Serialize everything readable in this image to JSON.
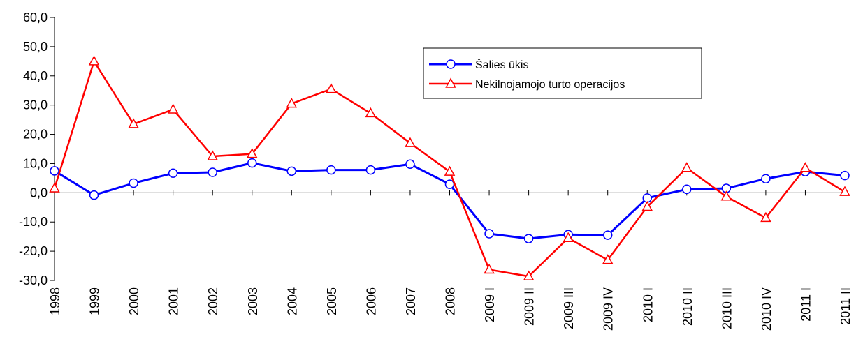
{
  "chart_data": {
    "type": "line",
    "categories": [
      "1998",
      "1999",
      "2000",
      "2001",
      "2002",
      "2003",
      "2004",
      "2005",
      "2006",
      "2007",
      "2008",
      "2009 I",
      "2009 II",
      "2009 III",
      "2009 IV",
      "2010 I",
      "2010 II",
      "2010 III",
      "2010 IV",
      "2011 I",
      "2011 II"
    ],
    "series": [
      {
        "name": "Šalies ūkis",
        "color": "#0000ff",
        "marker": "circle",
        "values": [
          7.5,
          -0.8,
          3.3,
          6.7,
          7.0,
          10.2,
          7.4,
          7.8,
          7.8,
          9.8,
          2.9,
          -14.0,
          -15.7,
          -14.3,
          -14.5,
          -1.8,
          1.2,
          1.5,
          4.8,
          7.2,
          5.9
        ]
      },
      {
        "name": "Nekilnojamojo turto operacijos",
        "color": "#ff0000",
        "marker": "triangle",
        "values": [
          1.5,
          45.0,
          23.5,
          28.5,
          12.5,
          13.3,
          30.5,
          35.5,
          27.2,
          17.0,
          7.2,
          -26.3,
          -28.6,
          -15.5,
          -23.0,
          -4.8,
          8.5,
          -1.3,
          -8.6,
          8.5,
          0.3
        ]
      }
    ],
    "ylim": [
      -30,
      60
    ],
    "yticks": [
      {
        "value": -30,
        "label": "-30,0"
      },
      {
        "value": -20,
        "label": "-20,0"
      },
      {
        "value": -10,
        "label": "-10,0"
      },
      {
        "value": 0,
        "label": "0,0"
      },
      {
        "value": 10,
        "label": "10,0"
      },
      {
        "value": 20,
        "label": "20,0"
      },
      {
        "value": 30,
        "label": "30,0"
      },
      {
        "value": 40,
        "label": "40,0"
      },
      {
        "value": 50,
        "label": "50,0"
      },
      {
        "value": 60,
        "label": "60,0"
      }
    ],
    "grid": false
  }
}
